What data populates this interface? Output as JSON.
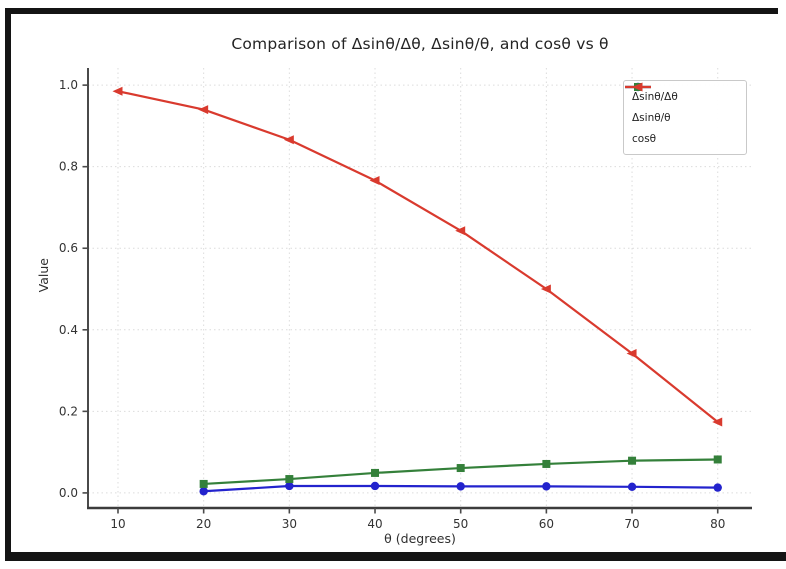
{
  "figure": {
    "background": "#ffffff",
    "border_color": "#141414",
    "axis_color": "#4a4a4a",
    "grid_color": "#dcdcdc",
    "tick_label_color": "#333333"
  },
  "chart_data": {
    "type": "line",
    "title": "Comparison of Δsinθ/Δθ, Δsinθ/θ, and cosθ vs θ",
    "xlabel": "θ (degrees)",
    "ylabel": "Value",
    "xlim": [
      6.5,
      84
    ],
    "ylim": [
      -0.037,
      1.042
    ],
    "xticks": [
      10,
      20,
      30,
      40,
      50,
      60,
      70,
      80
    ],
    "yticks": [
      0.0,
      0.2,
      0.4,
      0.6,
      0.8,
      1.0
    ],
    "ytick_labels": [
      "0.0",
      "0.2",
      "0.4",
      "0.6",
      "0.8",
      "1.0"
    ],
    "grid": true,
    "grid_style": "dotted",
    "legend_position": "upper right",
    "series": [
      {
        "name": "Δsinθ/Δθ",
        "color": "#2323cd",
        "marker": "circle",
        "x": [
          20,
          30,
          40,
          50,
          60,
          70,
          80
        ],
        "y": [
          0.004,
          0.017,
          0.017,
          0.016,
          0.016,
          0.015,
          0.013
        ]
      },
      {
        "name": "Δsinθ/θ",
        "color": "#34803a",
        "marker": "square",
        "x": [
          20,
          30,
          40,
          50,
          60,
          70,
          80
        ],
        "y": [
          0.022,
          0.034,
          0.049,
          0.061,
          0.071,
          0.079,
          0.082
        ]
      },
      {
        "name": "cosθ",
        "color": "#d93a2e",
        "marker": "triangle",
        "x": [
          10,
          20,
          30,
          40,
          50,
          60,
          70,
          80
        ],
        "y": [
          0.985,
          0.94,
          0.866,
          0.766,
          0.643,
          0.5,
          0.342,
          0.174
        ]
      }
    ]
  }
}
